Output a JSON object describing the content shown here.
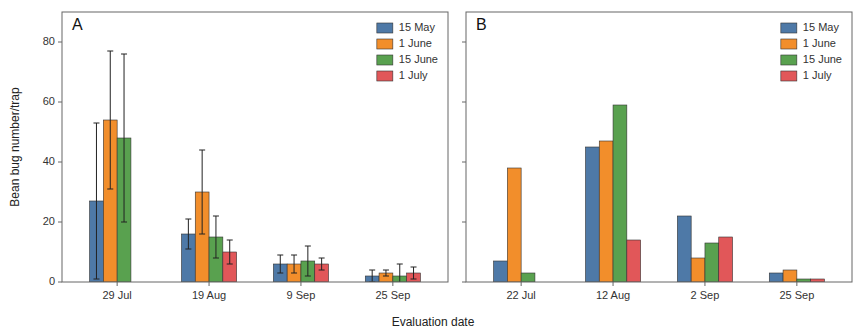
{
  "chart_data": [
    {
      "type": "bar",
      "title": "A",
      "categories": [
        "29 Jul",
        "19 Aug",
        "9 Sep",
        "25 Sep"
      ],
      "series": [
        {
          "name": "15 May",
          "values": [
            27,
            16,
            6,
            2
          ],
          "errors": [
            26,
            5,
            3,
            2
          ]
        },
        {
          "name": "1 June",
          "values": [
            54,
            30,
            6,
            3
          ],
          "errors": [
            23,
            14,
            3,
            1
          ]
        },
        {
          "name": "15 June",
          "values": [
            48,
            15,
            7,
            2
          ],
          "errors": [
            28,
            7,
            5,
            4
          ]
        },
        {
          "name": "1 July",
          "values": [
            0,
            10,
            6,
            3
          ],
          "errors": [
            0,
            4,
            2,
            2
          ]
        }
      ],
      "ylabel": "Bean bug number/trap",
      "xlabel": "Evaluation date",
      "ylim": [
        0,
        90
      ],
      "yticks": [
        0,
        20,
        40,
        60,
        80
      ],
      "legend": "upper right"
    },
    {
      "type": "bar",
      "title": "B",
      "categories": [
        "22 Jul",
        "12 Aug",
        "2 Sep",
        "25 Sep"
      ],
      "series": [
        {
          "name": "15 May",
          "values": [
            7,
            45,
            22,
            3
          ]
        },
        {
          "name": "1 June",
          "values": [
            38,
            47,
            8,
            4
          ]
        },
        {
          "name": "15 June",
          "values": [
            3,
            59,
            13,
            1
          ]
        },
        {
          "name": "1 July",
          "values": [
            0,
            14,
            15,
            1
          ]
        }
      ],
      "ylim": [
        0,
        90
      ],
      "yticks": [
        0,
        20,
        40,
        60,
        80
      ],
      "tick_labels": "x",
      "legend": "upper right"
    }
  ]
}
